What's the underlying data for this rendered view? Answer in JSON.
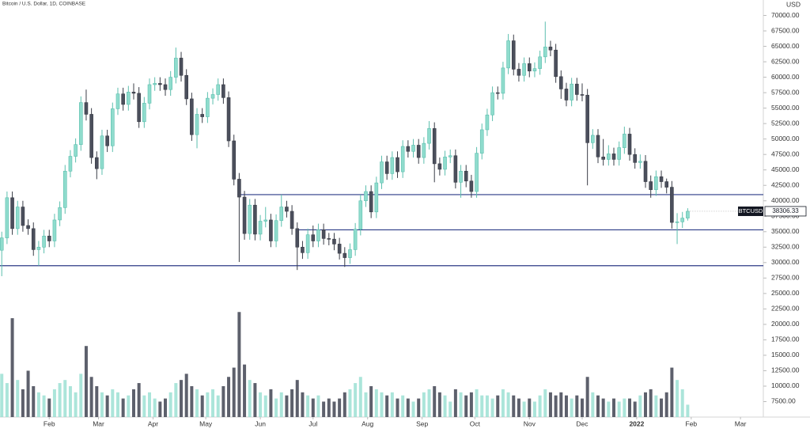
{
  "chart_data": {
    "type": "candlestick",
    "title": "Bitcoin / U.S. Dollar, 1D, COINBASE",
    "symbol": "BTCUSD",
    "currency": "USD",
    "up_color": "#8fdccd",
    "down_color": "#4b4f5c",
    "level_color": "#2b3a86",
    "grid": false,
    "xlim": [
      0,
      434
    ],
    "xticks": [
      {
        "value": 28,
        "label": "Feb"
      },
      {
        "value": 56,
        "label": "Mar"
      },
      {
        "value": 87,
        "label": "Apr"
      },
      {
        "value": 117,
        "label": "May"
      },
      {
        "value": 148,
        "label": "Jun"
      },
      {
        "value": 178,
        "label": "Jul"
      },
      {
        "value": 209,
        "label": "Aug"
      },
      {
        "value": 240,
        "label": "Sep"
      },
      {
        "value": 270,
        "label": "Oct"
      },
      {
        "value": 301,
        "label": "Nov"
      },
      {
        "value": 331,
        "label": "Dec"
      },
      {
        "value": 362,
        "label": "2022"
      },
      {
        "value": 393,
        "label": "Feb"
      },
      {
        "value": 421,
        "label": "Mar"
      }
    ],
    "ylim": [
      5000,
      72500
    ],
    "yticks": [
      {
        "value": 7500,
        "label": "7500.00"
      },
      {
        "value": 10000,
        "label": "10000.00"
      },
      {
        "value": 12500,
        "label": "12500.00"
      },
      {
        "value": 15000,
        "label": "15000.00"
      },
      {
        "value": 17500,
        "label": "17500.00"
      },
      {
        "value": 20000,
        "label": "20000.00"
      },
      {
        "value": 22500,
        "label": "22500.00"
      },
      {
        "value": 25000,
        "label": "25000.00"
      },
      {
        "value": 27500,
        "label": "27500.00"
      },
      {
        "value": 30000,
        "label": "30000.00"
      },
      {
        "value": 32500,
        "label": "32500.00"
      },
      {
        "value": 35000,
        "label": "35000.00"
      },
      {
        "value": 37500,
        "label": "37500.00"
      },
      {
        "value": 40000,
        "label": "40000.00"
      },
      {
        "value": 42500,
        "label": "42500.00"
      },
      {
        "value": 45000,
        "label": "45000.00"
      },
      {
        "value": 47500,
        "label": "47500.00"
      },
      {
        "value": 50000,
        "label": "50000.00"
      },
      {
        "value": 52500,
        "label": "52500.00"
      },
      {
        "value": 55000,
        "label": "55000.00"
      },
      {
        "value": 57500,
        "label": "57500.00"
      },
      {
        "value": 60000,
        "label": "60000.00"
      },
      {
        "value": 62500,
        "label": "62500.00"
      },
      {
        "value": 65000,
        "label": "65000.00"
      },
      {
        "value": 67500,
        "label": "67500.00"
      },
      {
        "value": 70000,
        "label": "70000.00"
      }
    ],
    "levels": [
      {
        "value": 41000,
        "from": 135
      },
      {
        "value": 35300,
        "from": 169
      },
      {
        "value": 29500,
        "from": 0
      }
    ],
    "x": [
      1,
      4,
      7,
      10,
      13,
      16,
      19,
      22,
      25,
      28,
      31,
      34,
      37,
      40,
      43,
      46,
      49,
      52,
      55,
      58,
      61,
      64,
      67,
      70,
      73,
      76,
      79,
      82,
      85,
      88,
      91,
      94,
      97,
      100,
      103,
      106,
      109,
      112,
      115,
      118,
      121,
      124,
      127,
      130,
      133,
      136,
      139,
      142,
      145,
      148,
      151,
      154,
      157,
      160,
      163,
      166,
      169,
      172,
      175,
      178,
      181,
      184,
      187,
      190,
      193,
      196,
      199,
      202,
      205,
      208,
      211,
      214,
      217,
      220,
      223,
      226,
      229,
      232,
      235,
      238,
      241,
      244,
      247,
      250,
      253,
      256,
      259,
      262,
      265,
      268,
      271,
      274,
      277,
      280,
      283,
      286,
      289,
      292,
      295,
      298,
      301,
      304,
      307,
      310,
      313,
      316,
      319,
      322,
      325,
      328,
      331,
      334,
      337,
      340,
      343,
      346,
      349,
      352,
      355,
      358,
      361,
      364,
      367,
      370,
      373,
      376,
      379,
      382,
      385,
      388,
      391
    ],
    "open": [
      32000,
      34000,
      40500,
      35500,
      39000,
      36000,
      35500,
      32100,
      32500,
      34300,
      33500,
      36900,
      38900,
      44800,
      47200,
      49100,
      55900,
      54000,
      47000,
      45200,
      50500,
      48900,
      54900,
      57300,
      55600,
      57600,
      57400,
      52800,
      55800,
      58800,
      59000,
      58800,
      58000,
      60000,
      63100,
      60300,
      56500,
      50700,
      54000,
      53600,
      56600,
      57200,
      58800,
      56700,
      49700,
      43500,
      40600,
      34700,
      39300,
      34600,
      36700,
      36900,
      33500,
      36800,
      39000,
      38300,
      35500,
      32500,
      31600,
      34500,
      33500,
      35300,
      33900,
      33800,
      33000,
      31500,
      30800,
      32100,
      35400,
      40000,
      41500,
      38200,
      42900,
      46300,
      44400,
      47000,
      44700,
      48800,
      48000,
      49000,
      47000,
      49300,
      51700,
      46000,
      45100,
      47100,
      47300,
      43000,
      44800,
      43200,
      41500,
      47700,
      51500,
      53900,
      57500,
      57400,
      61500,
      65900,
      61300,
      60300,
      62200,
      61000,
      61400,
      63300,
      64900,
      64400,
      60100,
      58100,
      56300,
      58900,
      57200,
      57100,
      49400,
      50600,
      47100,
      46700,
      47600,
      46700,
      48600,
      50800,
      47500,
      46200,
      46400,
      43100,
      41800,
      43900,
      43100,
      42200,
      36500,
      36600,
      37200
    ],
    "high": [
      35000,
      41500,
      41500,
      40000,
      40000,
      37000,
      36500,
      33500,
      35300,
      35300,
      37900,
      39900,
      45800,
      48200,
      50100,
      56900,
      58000,
      55000,
      48000,
      51500,
      51500,
      55900,
      58300,
      58300,
      58600,
      59000,
      58400,
      56800,
      59800,
      60000,
      60000,
      59800,
      61000,
      64800,
      64100,
      61300,
      57500,
      55000,
      55000,
      57600,
      58200,
      59800,
      59800,
      57700,
      50700,
      44500,
      41600,
      40300,
      40300,
      37700,
      39000,
      37900,
      37800,
      41000,
      40000,
      39300,
      36500,
      33500,
      35500,
      36000,
      36300,
      36300,
      34800,
      34800,
      34000,
      32500,
      33100,
      36400,
      41000,
      42500,
      42500,
      43900,
      47300,
      47300,
      48000,
      48000,
      49800,
      49800,
      50000,
      50000,
      50300,
      52900,
      52700,
      47000,
      48100,
      48300,
      48300,
      45800,
      45800,
      44200,
      48700,
      52500,
      54900,
      58500,
      58500,
      62500,
      67000,
      66900,
      62300,
      63200,
      63200,
      62400,
      64300,
      69000,
      65900,
      65400,
      61100,
      59100,
      59900,
      59900,
      59000,
      58100,
      51600,
      51600,
      50000,
      49000,
      48600,
      49600,
      52000,
      51800,
      48500,
      47500,
      47400,
      44100,
      44900,
      44900,
      43600,
      43200,
      38000,
      38200,
      38800
    ],
    "low": [
      27800,
      33000,
      34500,
      34500,
      35000,
      34500,
      31100,
      29500,
      31500,
      32500,
      32500,
      35900,
      37900,
      43800,
      46200,
      48100,
      53000,
      46000,
      43500,
      44200,
      47900,
      47900,
      53900,
      54600,
      54600,
      56400,
      51800,
      51800,
      54800,
      57800,
      57800,
      57000,
      57000,
      59000,
      59300,
      55500,
      49700,
      48500,
      52600,
      52600,
      55600,
      56200,
      55700,
      48700,
      42500,
      30100,
      33700,
      33700,
      33600,
      33600,
      35700,
      32500,
      32500,
      35800,
      37300,
      34500,
      28800,
      30600,
      30600,
      32500,
      32500,
      32900,
      32800,
      32000,
      30500,
      29300,
      29800,
      31100,
      34400,
      39000,
      37200,
      37200,
      41900,
      43400,
      43400,
      43700,
      43700,
      47000,
      47000,
      46000,
      46000,
      48300,
      43000,
      44100,
      44100,
      46100,
      42000,
      40500,
      42200,
      40500,
      40500,
      46700,
      50500,
      52900,
      56400,
      56400,
      60500,
      60300,
      59300,
      59300,
      60000,
      60000,
      60400,
      62300,
      63400,
      59100,
      56500,
      55300,
      55300,
      56200,
      56100,
      42500,
      48400,
      46100,
      45700,
      45700,
      45700,
      45700,
      47600,
      46500,
      45200,
      45200,
      42100,
      40500,
      40800,
      42100,
      41200,
      35500,
      33000,
      35600,
      36800
    ],
    "close": [
      34000,
      40500,
      35500,
      39000,
      36000,
      35500,
      32100,
      32500,
      34300,
      33500,
      36900,
      38900,
      44800,
      47200,
      49100,
      55900,
      54000,
      47000,
      45200,
      50500,
      48900,
      54900,
      57300,
      55600,
      57600,
      57400,
      52800,
      55800,
      58800,
      59000,
      58800,
      58000,
      60000,
      63100,
      60300,
      56500,
      50700,
      54000,
      53600,
      56600,
      57200,
      58800,
      56700,
      49700,
      43500,
      40600,
      34700,
      39300,
      34600,
      36700,
      36900,
      33500,
      36800,
      39000,
      38300,
      35500,
      32500,
      31600,
      34500,
      33500,
      35300,
      33900,
      33800,
      33000,
      31500,
      30800,
      32100,
      35400,
      40000,
      41500,
      38200,
      42900,
      46300,
      44400,
      47000,
      44700,
      48800,
      48000,
      49000,
      47000,
      49300,
      51700,
      46000,
      45100,
      47100,
      47300,
      43000,
      44800,
      43200,
      41500,
      47700,
      51500,
      53900,
      57500,
      57400,
      61500,
      65900,
      61300,
      60300,
      62200,
      61000,
      61400,
      63300,
      64900,
      64400,
      60100,
      58100,
      56300,
      58900,
      57200,
      57100,
      49400,
      50600,
      47100,
      46700,
      47600,
      46700,
      48600,
      50800,
      47500,
      46200,
      46400,
      43100,
      41800,
      43900,
      43100,
      42200,
      36500,
      36600,
      37200,
      38306.33
    ],
    "volume": [
      12000,
      10500,
      21000,
      11000,
      9500,
      12500,
      10000,
      9000,
      8500,
      8000,
      9500,
      10500,
      11000,
      10000,
      9000,
      12000,
      16500,
      11500,
      10000,
      9000,
      8500,
      9500,
      9000,
      8000,
      8500,
      9500,
      10500,
      8500,
      9000,
      8000,
      7500,
      8000,
      9000,
      10500,
      11000,
      12000,
      10000,
      9500,
      8500,
      9000,
      9500,
      8500,
      10000,
      11500,
      13000,
      22000,
      13500,
      11000,
      10500,
      9000,
      8500,
      9500,
      8000,
      9000,
      8500,
      9500,
      11000,
      9000,
      8500,
      8000,
      8500,
      7500,
      8000,
      7500,
      8000,
      9000,
      9500,
      10500,
      11500,
      9000,
      10000,
      9500,
      9000,
      8500,
      9000,
      8000,
      8500,
      8000,
      7500,
      8000,
      9000,
      9500,
      10000,
      9000,
      8500,
      7500,
      9500,
      9000,
      8500,
      9000,
      9500,
      8500,
      8500,
      8000,
      8500,
      9500,
      9000,
      8500,
      8000,
      7500,
      8000,
      7500,
      8500,
      9500,
      9000,
      8500,
      9000,
      8500,
      8000,
      8500,
      8000,
      11500,
      9000,
      8500,
      8000,
      7500,
      8000,
      7500,
      8000,
      8000,
      7500,
      8500,
      9000,
      9500,
      8500,
      8000,
      9000,
      13000,
      11000,
      9500,
      7000
    ]
  }
}
